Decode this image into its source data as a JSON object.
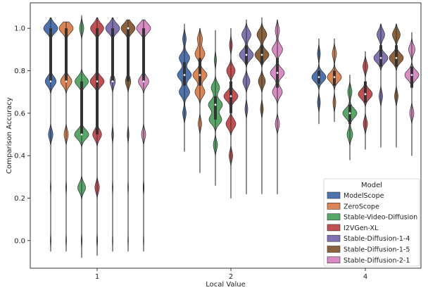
{
  "chart_data": {
    "type": "violin",
    "xlabel": "Local Value",
    "ylabel": "Comparison Accuracy",
    "categories": [
      "1",
      "2",
      "4"
    ],
    "ylim": [
      -0.13,
      1.12
    ],
    "yticks": [
      0.0,
      0.2,
      0.4,
      0.6,
      0.8,
      1.0
    ],
    "ytick_labels": [
      "0.0",
      "0.2",
      "0.4",
      "0.6",
      "0.8",
      "1.0"
    ],
    "legend": {
      "title": "Model",
      "placement": "lower-right"
    },
    "series": [
      {
        "name": "ModelScope",
        "color": "#4c72b0",
        "groups": [
          {
            "min": -0.05,
            "max": 1.05,
            "q1": 0.75,
            "median": 0.75,
            "q3": 1.0,
            "modes": [
              [
                0.0,
                0.05
              ],
              [
                0.25,
                0.05
              ],
              [
                0.5,
                0.32
              ],
              [
                0.75,
                0.78
              ],
              [
                1.0,
                1.0
              ]
            ]
          },
          {
            "min": 0.42,
            "max": 1.02,
            "q1": 0.73,
            "median": 0.78,
            "q3": 0.84,
            "modes": [
              [
                0.6,
                0.25
              ],
              [
                0.7,
                0.75
              ],
              [
                0.78,
                1.0
              ],
              [
                0.86,
                0.75
              ],
              [
                0.95,
                0.25
              ]
            ]
          },
          {
            "min": 0.55,
            "max": 0.95,
            "q1": 0.74,
            "median": 0.77,
            "q3": 0.8,
            "modes": [
              [
                0.65,
                0.2
              ],
              [
                0.77,
                1.0
              ],
              [
                0.88,
                0.2
              ]
            ]
          }
        ]
      },
      {
        "name": "ZeroScope",
        "color": "#dd8452",
        "groups": [
          {
            "min": -0.05,
            "max": 1.03,
            "q1": 0.75,
            "median": 0.75,
            "q3": 1.0,
            "modes": [
              [
                0.0,
                0.05
              ],
              [
                0.25,
                0.06
              ],
              [
                0.5,
                0.3
              ],
              [
                0.75,
                0.8
              ],
              [
                1.0,
                1.0
              ]
            ]
          },
          {
            "min": 0.32,
            "max": 1.0,
            "q1": 0.73,
            "median": 0.78,
            "q3": 0.86,
            "modes": [
              [
                0.55,
                0.25
              ],
              [
                0.7,
                0.7
              ],
              [
                0.78,
                1.0
              ],
              [
                0.88,
                0.7
              ],
              [
                0.95,
                0.35
              ]
            ]
          },
          {
            "min": 0.56,
            "max": 0.95,
            "q1": 0.73,
            "median": 0.77,
            "q3": 0.8,
            "modes": [
              [
                0.65,
                0.2
              ],
              [
                0.77,
                1.0
              ],
              [
                0.88,
                0.3
              ]
            ]
          }
        ]
      },
      {
        "name": "Stable-Video-Diffusion",
        "color": "#55a868",
        "groups": [
          {
            "min": -0.08,
            "max": 1.06,
            "q1": 0.5,
            "median": 0.5,
            "q3": 0.75,
            "modes": [
              [
                0.0,
                0.06
              ],
              [
                0.25,
                0.55
              ],
              [
                0.5,
                1.0
              ],
              [
                0.75,
                0.95
              ],
              [
                1.0,
                0.3
              ]
            ]
          },
          {
            "min": 0.26,
            "max": 0.99,
            "q1": 0.57,
            "median": 0.64,
            "q3": 0.68,
            "modes": [
              [
                0.45,
                0.3
              ],
              [
                0.57,
                0.9
              ],
              [
                0.64,
                1.0
              ],
              [
                0.72,
                0.6
              ],
              [
                0.85,
                0.15
              ]
            ]
          },
          {
            "min": 0.38,
            "max": 0.78,
            "q1": 0.55,
            "median": 0.6,
            "q3": 0.64,
            "modes": [
              [
                0.5,
                0.4
              ],
              [
                0.6,
                1.0
              ],
              [
                0.7,
                0.3
              ]
            ]
          }
        ]
      },
      {
        "name": "I2VGen-XL",
        "color": "#c44e52",
        "groups": [
          {
            "min": -0.07,
            "max": 1.05,
            "q1": 0.5,
            "median": 0.75,
            "q3": 1.0,
            "modes": [
              [
                0.0,
                0.06
              ],
              [
                0.25,
                0.3
              ],
              [
                0.5,
                0.6
              ],
              [
                0.75,
                0.95
              ],
              [
                1.0,
                0.9
              ]
            ]
          },
          {
            "min": 0.2,
            "max": 1.0,
            "q1": 0.6,
            "median": 0.68,
            "q3": 0.75,
            "modes": [
              [
                0.4,
                0.25
              ],
              [
                0.55,
                0.7
              ],
              [
                0.68,
                1.0
              ],
              [
                0.8,
                0.6
              ],
              [
                0.92,
                0.2
              ]
            ]
          },
          {
            "min": 0.43,
            "max": 0.89,
            "q1": 0.65,
            "median": 0.69,
            "q3": 0.75,
            "modes": [
              [
                0.55,
                0.3
              ],
              [
                0.69,
                1.0
              ],
              [
                0.82,
                0.35
              ]
            ]
          }
        ]
      },
      {
        "name": "Stable-Diffusion-1-4",
        "color": "#8172b3",
        "groups": [
          {
            "min": -0.05,
            "max": 1.05,
            "q1": 0.75,
            "median": 0.75,
            "q3": 1.0,
            "modes": [
              [
                0.0,
                0.04
              ],
              [
                0.25,
                0.05
              ],
              [
                0.5,
                0.12
              ],
              [
                0.75,
                0.38
              ],
              [
                1.0,
                1.0
              ]
            ]
          },
          {
            "min": 0.22,
            "max": 1.04,
            "q1": 0.83,
            "median": 0.875,
            "q3": 0.92,
            "modes": [
              [
                0.62,
                0.2
              ],
              [
                0.75,
                0.5
              ],
              [
                0.875,
                1.0
              ],
              [
                0.97,
                0.65
              ]
            ]
          },
          {
            "min": 0.44,
            "max": 1.02,
            "q1": 0.82,
            "median": 0.86,
            "q3": 0.92,
            "modes": [
              [
                0.68,
                0.25
              ],
              [
                0.86,
                1.0
              ],
              [
                0.97,
                0.55
              ]
            ]
          }
        ]
      },
      {
        "name": "Stable-Diffusion-1-5",
        "color": "#8c613c",
        "groups": [
          {
            "min": -0.05,
            "max": 1.04,
            "q1": 0.75,
            "median": 1.0,
            "q3": 1.0,
            "modes": [
              [
                0.0,
                0.04
              ],
              [
                0.25,
                0.05
              ],
              [
                0.5,
                0.12
              ],
              [
                0.75,
                0.38
              ],
              [
                1.0,
                1.0
              ]
            ]
          },
          {
            "min": 0.22,
            "max": 1.05,
            "q1": 0.83,
            "median": 0.875,
            "q3": 0.92,
            "modes": [
              [
                0.62,
                0.2
              ],
              [
                0.75,
                0.5
              ],
              [
                0.875,
                1.0
              ],
              [
                0.97,
                0.7
              ]
            ]
          },
          {
            "min": 0.44,
            "max": 1.02,
            "q1": 0.82,
            "median": 0.86,
            "q3": 0.92,
            "modes": [
              [
                0.68,
                0.25
              ],
              [
                0.86,
                1.0
              ],
              [
                0.97,
                0.55
              ]
            ]
          }
        ]
      },
      {
        "name": "Stable-Diffusion-2-1",
        "color": "#da8bc3",
        "groups": [
          {
            "min": -0.05,
            "max": 1.04,
            "q1": 0.75,
            "median": 0.75,
            "q3": 1.0,
            "modes": [
              [
                0.0,
                0.04
              ],
              [
                0.25,
                0.07
              ],
              [
                0.5,
                0.3
              ],
              [
                0.75,
                0.75
              ],
              [
                1.0,
                1.0
              ]
            ]
          },
          {
            "min": 0.22,
            "max": 1.04,
            "q1": 0.72,
            "median": 0.79,
            "q3": 0.86,
            "modes": [
              [
                0.55,
                0.3
              ],
              [
                0.7,
                0.7
              ],
              [
                0.79,
                1.0
              ],
              [
                0.9,
                0.75
              ],
              [
                0.99,
                0.3
              ]
            ]
          },
          {
            "min": 0.4,
            "max": 0.98,
            "q1": 0.72,
            "median": 0.78,
            "q3": 0.82,
            "modes": [
              [
                0.6,
                0.3
              ],
              [
                0.78,
                1.0
              ],
              [
                0.9,
                0.45
              ]
            ]
          }
        ]
      }
    ]
  }
}
